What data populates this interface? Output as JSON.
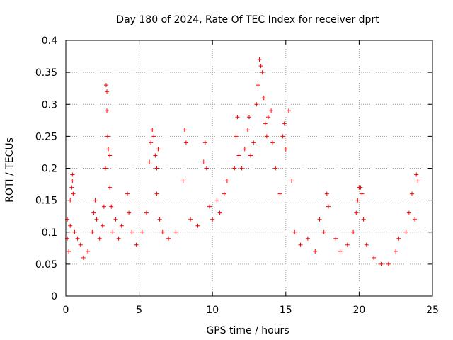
{
  "chart_data": {
    "type": "scatter",
    "title": "Day 180 of 2024, Rate Of TEC Index for receiver dprt",
    "xlabel": "GPS time / hours",
    "ylabel": "ROTI / TECUs",
    "xlim": [
      0,
      25
    ],
    "ylim": [
      0,
      0.4
    ],
    "x_ticks": [
      0,
      5,
      10,
      15,
      20,
      25
    ],
    "x_tick_labels": [
      "0",
      "5",
      "10",
      "15",
      "20",
      "25"
    ],
    "y_ticks": [
      0,
      0.05,
      0.1,
      0.15,
      0.2,
      0.25,
      0.3,
      0.35,
      0.4
    ],
    "y_tick_labels": [
      "0",
      "0.05",
      "0.1",
      "0.15",
      "0.2",
      "0.25",
      "0.3",
      "0.35",
      "0.4"
    ],
    "grid": true,
    "marker": "+",
    "color": "#ff0000",
    "series": [
      {
        "name": "ROTI",
        "points": [
          [
            0.1,
            0.12
          ],
          [
            0.1,
            0.09
          ],
          [
            0.2,
            0.07
          ],
          [
            0.3,
            0.11
          ],
          [
            0.3,
            0.15
          ],
          [
            0.4,
            0.17
          ],
          [
            0.45,
            0.19
          ],
          [
            0.45,
            0.18
          ],
          [
            0.5,
            0.16
          ],
          [
            0.6,
            0.1
          ],
          [
            0.8,
            0.09
          ],
          [
            1.0,
            0.08
          ],
          [
            1.2,
            0.06
          ],
          [
            1.5,
            0.07
          ],
          [
            1.8,
            0.1
          ],
          [
            1.9,
            0.13
          ],
          [
            2.0,
            0.15
          ],
          [
            2.1,
            0.12
          ],
          [
            2.3,
            0.09
          ],
          [
            2.5,
            0.11
          ],
          [
            2.6,
            0.14
          ],
          [
            2.7,
            0.2
          ],
          [
            2.75,
            0.33
          ],
          [
            2.8,
            0.32
          ],
          [
            2.8,
            0.29
          ],
          [
            2.85,
            0.25
          ],
          [
            2.9,
            0.23
          ],
          [
            3.0,
            0.22
          ],
          [
            3.0,
            0.17
          ],
          [
            3.1,
            0.14
          ],
          [
            3.2,
            0.1
          ],
          [
            3.4,
            0.12
          ],
          [
            3.6,
            0.09
          ],
          [
            3.8,
            0.11
          ],
          [
            4.2,
            0.16
          ],
          [
            4.3,
            0.13
          ],
          [
            4.5,
            0.1
          ],
          [
            4.8,
            0.08
          ],
          [
            5.2,
            0.1
          ],
          [
            5.5,
            0.13
          ],
          [
            5.7,
            0.21
          ],
          [
            5.8,
            0.24
          ],
          [
            5.9,
            0.26
          ],
          [
            6.0,
            0.25
          ],
          [
            6.1,
            0.22
          ],
          [
            6.2,
            0.2
          ],
          [
            6.2,
            0.16
          ],
          [
            6.3,
            0.23
          ],
          [
            6.4,
            0.12
          ],
          [
            6.6,
            0.1
          ],
          [
            7.0,
            0.09
          ],
          [
            7.5,
            0.1
          ],
          [
            8.0,
            0.18
          ],
          [
            8.1,
            0.26
          ],
          [
            8.2,
            0.24
          ],
          [
            8.5,
            0.12
          ],
          [
            9.0,
            0.11
          ],
          [
            9.4,
            0.21
          ],
          [
            9.5,
            0.24
          ],
          [
            9.6,
            0.2
          ],
          [
            9.8,
            0.14
          ],
          [
            10.0,
            0.12
          ],
          [
            10.3,
            0.15
          ],
          [
            10.5,
            0.13
          ],
          [
            10.8,
            0.16
          ],
          [
            11.0,
            0.18
          ],
          [
            11.5,
            0.2
          ],
          [
            11.6,
            0.25
          ],
          [
            11.7,
            0.28
          ],
          [
            11.8,
            0.22
          ],
          [
            12.0,
            0.2
          ],
          [
            12.2,
            0.23
          ],
          [
            12.4,
            0.26
          ],
          [
            12.5,
            0.28
          ],
          [
            12.6,
            0.22
          ],
          [
            12.8,
            0.24
          ],
          [
            13.0,
            0.3
          ],
          [
            13.1,
            0.33
          ],
          [
            13.2,
            0.37
          ],
          [
            13.3,
            0.36
          ],
          [
            13.4,
            0.35
          ],
          [
            13.5,
            0.31
          ],
          [
            13.6,
            0.27
          ],
          [
            13.7,
            0.25
          ],
          [
            13.8,
            0.28
          ],
          [
            14.0,
            0.29
          ],
          [
            14.1,
            0.24
          ],
          [
            14.3,
            0.2
          ],
          [
            14.6,
            0.16
          ],
          [
            14.8,
            0.25
          ],
          [
            14.9,
            0.27
          ],
          [
            15.0,
            0.23
          ],
          [
            15.2,
            0.29
          ],
          [
            15.4,
            0.18
          ],
          [
            15.6,
            0.1
          ],
          [
            16.0,
            0.08
          ],
          [
            16.5,
            0.09
          ],
          [
            17.0,
            0.07
          ],
          [
            17.3,
            0.12
          ],
          [
            17.6,
            0.1
          ],
          [
            17.8,
            0.16
          ],
          [
            17.9,
            0.14
          ],
          [
            18.4,
            0.09
          ],
          [
            18.7,
            0.07
          ],
          [
            19.2,
            0.08
          ],
          [
            19.6,
            0.1
          ],
          [
            19.8,
            0.13
          ],
          [
            19.9,
            0.15
          ],
          [
            20.0,
            0.17
          ],
          [
            20.1,
            0.17
          ],
          [
            20.2,
            0.16
          ],
          [
            20.3,
            0.12
          ],
          [
            20.5,
            0.08
          ],
          [
            21.0,
            0.06
          ],
          [
            21.5,
            0.05
          ],
          [
            22.0,
            0.05
          ],
          [
            22.5,
            0.07
          ],
          [
            22.7,
            0.09
          ],
          [
            23.2,
            0.1
          ],
          [
            23.4,
            0.13
          ],
          [
            23.6,
            0.16
          ],
          [
            23.8,
            0.12
          ],
          [
            23.9,
            0.19
          ],
          [
            24.0,
            0.18
          ]
        ]
      }
    ]
  }
}
